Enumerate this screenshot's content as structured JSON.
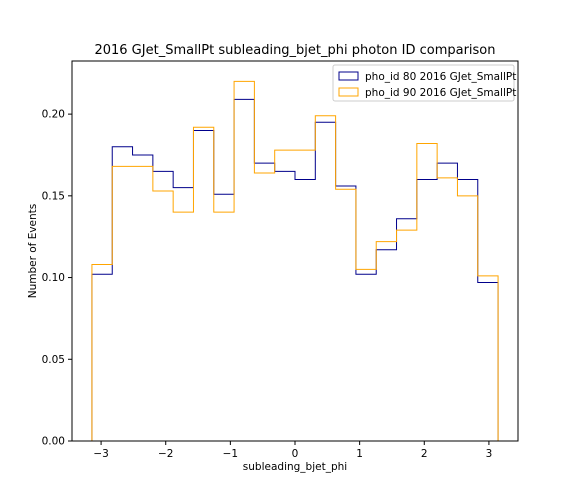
{
  "chart_data": {
    "type": "step-histogram",
    "title": "2016 GJet_SmallPt subleading_bjet_phi photon ID comparison",
    "xlabel": "subleading_bjet_phi",
    "ylabel": "Number of Events",
    "xlim": [
      -3.45,
      3.45
    ],
    "ylim": [
      0.0,
      0.2325
    ],
    "xticks": [
      -3,
      -2,
      -1,
      0,
      1,
      2,
      3
    ],
    "xtick_labels": [
      "−3",
      "−2",
      "−1",
      "0",
      "1",
      "2",
      "3"
    ],
    "yticks": [
      0.0,
      0.05,
      0.1,
      0.15,
      0.2
    ],
    "ytick_labels": [
      "0.00",
      "0.05",
      "0.10",
      "0.15",
      "0.20"
    ],
    "grid": false,
    "legend_position": "top-right",
    "bin_edges": [
      -3.1416,
      -2.8274,
      -2.5133,
      -2.1991,
      -1.885,
      -1.5708,
      -1.2566,
      -0.9425,
      -0.6283,
      -0.3142,
      0.0,
      0.3142,
      0.6283,
      0.9425,
      1.2566,
      1.5708,
      1.885,
      2.1991,
      2.5133,
      2.8274,
      3.1416
    ],
    "series": [
      {
        "name": "pho_id 80 2016 GJet_SmallPt",
        "color": "#00008b",
        "values": [
          0.102,
          0.18,
          0.175,
          0.165,
          0.155,
          0.19,
          0.151,
          0.209,
          0.17,
          0.165,
          0.16,
          0.195,
          0.156,
          0.102,
          0.117,
          0.136,
          0.16,
          0.17,
          0.16,
          0.097
        ]
      },
      {
        "name": "pho_id 90 2016 GJet_SmallPt",
        "color": "#ffa500",
        "values": [
          0.108,
          0.168,
          0.168,
          0.153,
          0.14,
          0.192,
          0.14,
          0.22,
          0.164,
          0.178,
          0.178,
          0.199,
          0.154,
          0.105,
          0.122,
          0.129,
          0.182,
          0.161,
          0.15,
          0.101
        ]
      }
    ]
  }
}
